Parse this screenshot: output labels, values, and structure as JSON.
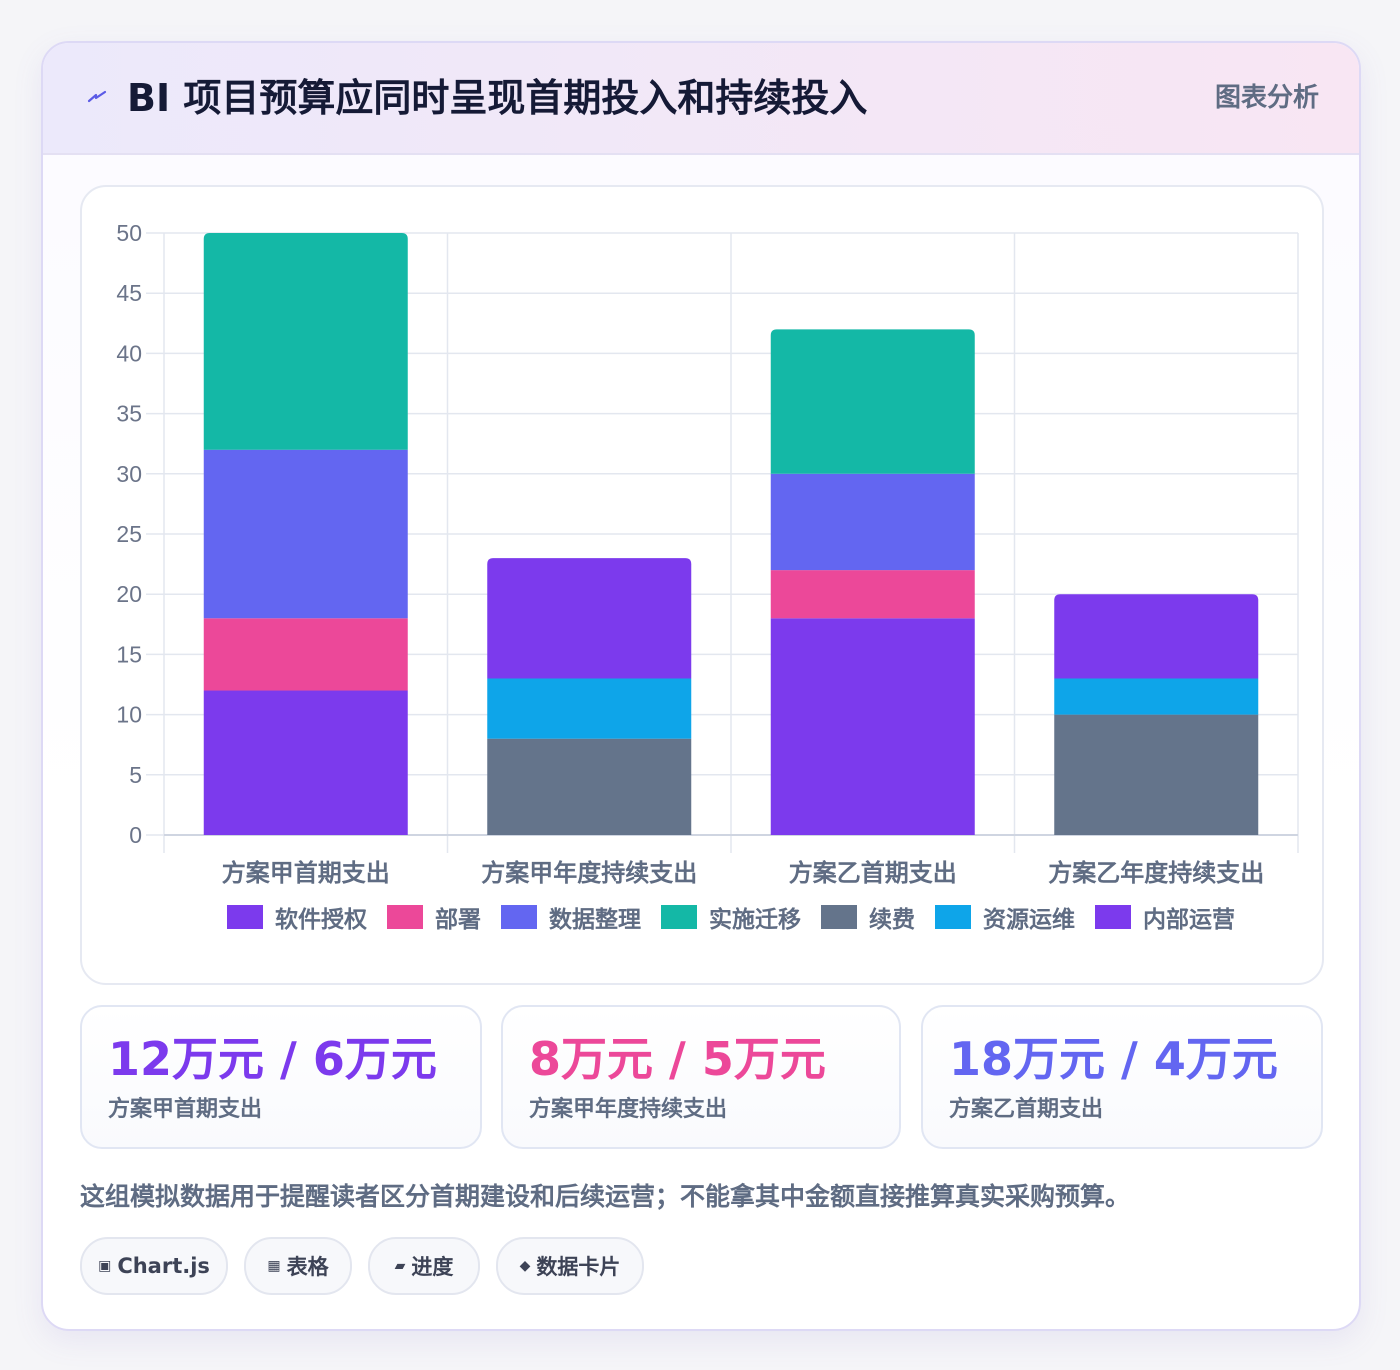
{
  "header": {
    "icon": "lightning-icon",
    "title": "BI 项目预算应同时呈现首期投入和持续投入",
    "tag": "图表分析"
  },
  "chart_data": {
    "type": "bar",
    "stacked": true,
    "categories": [
      "方案甲首期支出",
      "方案甲年度持续支出",
      "方案乙首期支出",
      "方案乙年度持续支出"
    ],
    "ylim": [
      0,
      50
    ],
    "yticks": [
      0,
      5,
      10,
      15,
      20,
      25,
      30,
      35,
      40,
      45,
      50
    ],
    "grid": true,
    "legend_position": "bottom",
    "series": [
      {
        "name": "软件授权",
        "color": "#7c3aed",
        "values": [
          12,
          0,
          18,
          0
        ]
      },
      {
        "name": "部署",
        "color": "#ec4899",
        "values": [
          6,
          0,
          4,
          0
        ]
      },
      {
        "name": "数据整理",
        "color": "#6366f1",
        "values": [
          14,
          0,
          8,
          0
        ]
      },
      {
        "name": "实施迁移",
        "color": "#14b8a6",
        "values": [
          18,
          0,
          12,
          0
        ]
      },
      {
        "name": "续费",
        "color": "#64748b",
        "values": [
          0,
          8,
          0,
          10
        ]
      },
      {
        "name": "资源运维",
        "color": "#0ea5e9",
        "values": [
          0,
          5,
          0,
          3
        ]
      },
      {
        "name": "内部运营",
        "color": "#7c3aed",
        "values": [
          0,
          10,
          0,
          7
        ]
      }
    ]
  },
  "stats": [
    {
      "value": "12万元 / 6万元",
      "label": "方案甲首期支出",
      "color": "#7c3aed"
    },
    {
      "value": "8万元 / 5万元",
      "label": "方案甲年度持续支出",
      "color": "#ec4899"
    },
    {
      "value": "18万元 / 4万元",
      "label": "方案乙首期支出",
      "color": "#6366f1"
    }
  ],
  "note": "这组模拟数据用于提醒读者区分首期建设和后续运营；不能拿其中金额直接推算真实采购预算。",
  "chips": [
    {
      "icon": "chart-icon",
      "glyph": "▣",
      "label": "Chart.js"
    },
    {
      "icon": "table-icon",
      "glyph": "▦",
      "label": "表格"
    },
    {
      "icon": "progress-icon",
      "glyph": "▰",
      "label": "进度"
    },
    {
      "icon": "data-card-icon",
      "glyph": "◆",
      "label": "数据卡片"
    }
  ]
}
